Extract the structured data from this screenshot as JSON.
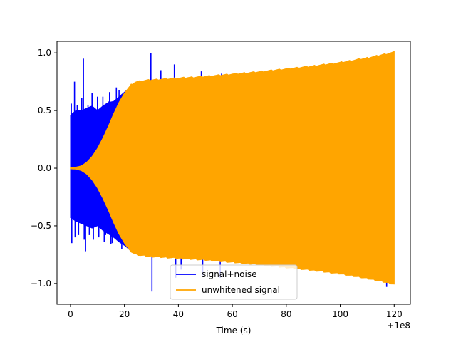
{
  "chart_data": {
    "type": "line",
    "title": "",
    "xlabel": "Time (s)",
    "ylabel": "",
    "x_offset_label": "+1e8",
    "xlim": [
      -5,
      126
    ],
    "ylim": [
      -1.18,
      1.1
    ],
    "x_ticks": [
      0,
      20,
      40,
      60,
      80,
      100,
      120
    ],
    "x_tick_labels": [
      "0",
      "20",
      "40",
      "60",
      "80",
      "100",
      "120"
    ],
    "y_ticks": [
      -1.0,
      -0.5,
      0.0,
      0.5,
      1.0
    ],
    "y_tick_labels": [
      "−1.0",
      "−0.5",
      "0.0",
      "0.5",
      "1.0"
    ],
    "grid": false,
    "legend": {
      "placement": "lower center"
    },
    "series": [
      {
        "name": "signal+noise",
        "color": "#0000ff",
        "envelope_x": [
          0,
          2,
          4,
          6,
          8,
          10,
          12,
          14,
          16,
          18,
          20,
          22,
          24,
          26,
          28,
          30
        ],
        "envelope_upper": [
          0.46,
          0.5,
          0.5,
          0.52,
          0.54,
          0.5,
          0.54,
          0.57,
          0.58,
          0.62,
          0.66,
          0.7,
          0.73,
          0.74,
          0.75,
          0.75
        ],
        "envelope_lower": [
          -0.43,
          -0.46,
          -0.48,
          -0.5,
          -0.52,
          -0.5,
          -0.54,
          -0.57,
          -0.6,
          -0.64,
          -0.67,
          -0.71,
          -0.73,
          -0.74,
          -0.75,
          -0.76
        ],
        "spikes": [
          [
            0.3,
            0.56
          ],
          [
            0.5,
            -0.65
          ],
          [
            1.5,
            0.75
          ],
          [
            1.7,
            -0.6
          ],
          [
            2.5,
            0.55
          ],
          [
            3.0,
            -0.58
          ],
          [
            4.2,
            0.61
          ],
          [
            4.8,
            0.95
          ],
          [
            5.1,
            -0.62
          ],
          [
            5.6,
            -0.72
          ],
          [
            6.5,
            0.55
          ],
          [
            7.0,
            -0.58
          ],
          [
            8.0,
            0.65
          ],
          [
            8.5,
            -0.62
          ],
          [
            10.0,
            0.62
          ],
          [
            10.5,
            -0.6
          ],
          [
            12.0,
            0.62
          ],
          [
            12.5,
            -0.64
          ],
          [
            13.0,
            -0.58
          ],
          [
            14.0,
            0.58
          ],
          [
            14.5,
            0.66
          ],
          [
            15.0,
            -0.66
          ],
          [
            15.5,
            -0.65
          ],
          [
            17.0,
            0.7
          ],
          [
            18.0,
            0.68
          ],
          [
            19.0,
            -0.7
          ],
          [
            29.8,
            1.0
          ],
          [
            30.2,
            -1.07
          ],
          [
            33.5,
            0.85
          ],
          [
            38.5,
            0.9
          ],
          [
            39.0,
            -0.95
          ],
          [
            41.0,
            -0.88
          ],
          [
            48.5,
            0.84
          ],
          [
            49.0,
            -0.93
          ],
          [
            55.5,
            -0.95
          ],
          [
            56.0,
            0.82
          ],
          [
            60.5,
            0.79
          ],
          [
            117.2,
            -1.03
          ]
        ]
      },
      {
        "name": "unwhitened signal",
        "color": "#ffa500",
        "envelope_x": [
          0,
          2,
          4,
          6,
          8,
          10,
          12,
          14,
          16,
          18,
          20,
          22,
          24,
          26,
          28,
          30,
          40,
          50,
          60,
          70,
          80,
          90,
          100,
          110,
          120
        ],
        "envelope": [
          0.005,
          0.008,
          0.02,
          0.05,
          0.1,
          0.17,
          0.26,
          0.36,
          0.47,
          0.57,
          0.65,
          0.71,
          0.74,
          0.75,
          0.755,
          0.76,
          0.775,
          0.79,
          0.81,
          0.83,
          0.855,
          0.88,
          0.91,
          0.95,
          1.0
        ]
      }
    ]
  }
}
